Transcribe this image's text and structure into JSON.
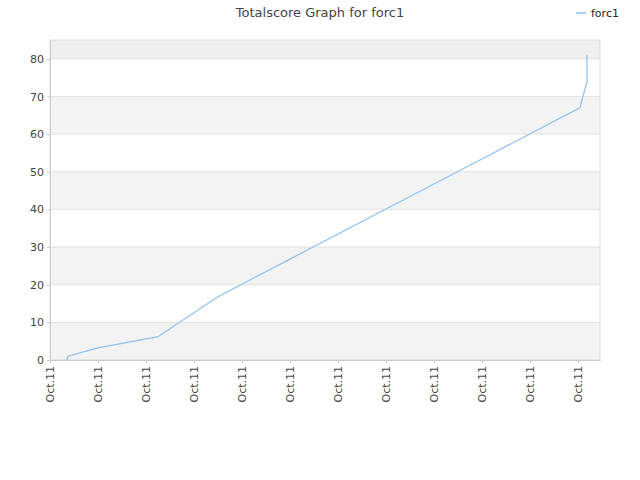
{
  "chart_data": {
    "type": "line",
    "title": "Totalscore Graph for forc1",
    "x": [
      0.35,
      0.375,
      1.0,
      2.25,
      3.5,
      5.0,
      7.0,
      9.0,
      11.04,
      11.19,
      11.19
    ],
    "series": [
      {
        "name": "forc1",
        "color": "#8ec1ef",
        "values": [
          0,
          1,
          3.2,
          6.2,
          16.8,
          26.8,
          40.1,
          53.4,
          67,
          74,
          81
        ]
      }
    ],
    "xlim": [
      0,
      11.46
    ],
    "xticks": [
      {
        "value": 0,
        "label": "Oct.11"
      },
      {
        "value": 1,
        "label": "Oct.11"
      },
      {
        "value": 2,
        "label": "Oct.11"
      },
      {
        "value": 3,
        "label": "Oct.11"
      },
      {
        "value": 4,
        "label": "Oct.11"
      },
      {
        "value": 5,
        "label": "Oct.11"
      },
      {
        "value": 6,
        "label": "Oct.11"
      },
      {
        "value": 7,
        "label": "Oct.11"
      },
      {
        "value": 8,
        "label": "Oct.11"
      },
      {
        "value": 9,
        "label": "Oct.11"
      },
      {
        "value": 10,
        "label": "Oct.11"
      },
      {
        "value": 11,
        "label": "Oct.11"
      }
    ],
    "ylim": [
      0,
      85
    ],
    "yticks": [
      0,
      10,
      20,
      30,
      40,
      50,
      60,
      70,
      80
    ],
    "grid": true,
    "legend": "top-right"
  }
}
